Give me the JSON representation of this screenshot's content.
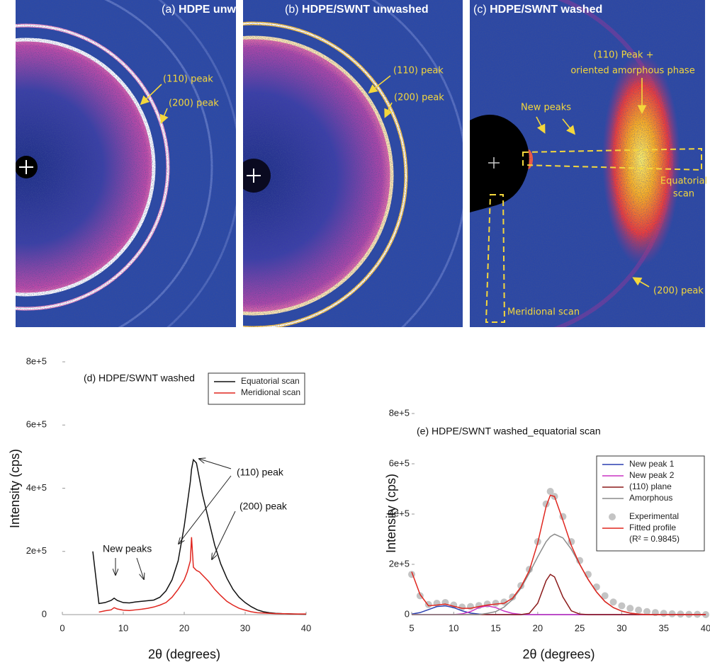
{
  "images": [
    {
      "label": "(a)",
      "title": "HDPE unwashed",
      "annotations": [
        "(110) peak",
        "(200) peak"
      ]
    },
    {
      "label": "(b)",
      "title": "HDPE/SWNT unwashed",
      "annotations": [
        "(110) peak",
        "(200) peak"
      ]
    },
    {
      "label": "(c)",
      "title": "HDPE/SWNT washed",
      "annotations": [
        "(110) Peak +",
        "oriented amorphous phase",
        "New peaks",
        "Equatorial",
        "scan",
        "(200) peak",
        "Meridional scan"
      ]
    }
  ],
  "chart_data": [
    {
      "type": "line",
      "title": "(d) HDPE/SWNT washed",
      "annotations": [
        "New peaks",
        "(110) peak",
        "(200) peak"
      ],
      "x_label": "2θ (degrees)",
      "y_label": "Intensity (cps)",
      "x": [
        5,
        6,
        7,
        8,
        8.5,
        9,
        10,
        11,
        12,
        13,
        14,
        15,
        16,
        17,
        18,
        19,
        20,
        20.5,
        21,
        21.2,
        21.5,
        22,
        22.5,
        23,
        24,
        25,
        26,
        27,
        28,
        29,
        30,
        31,
        32,
        33,
        34,
        35,
        36,
        38,
        40
      ],
      "series": [
        {
          "name": "Equatorial scan",
          "color": "#111111",
          "mode": "line",
          "values": [
            200000,
            35000,
            38000,
            45000,
            52000,
            45000,
            38000,
            37000,
            40000,
            42000,
            44000,
            46000,
            55000,
            75000,
            110000,
            170000,
            280000,
            350000,
            420000,
            460000,
            490000,
            480000,
            430000,
            380000,
            300000,
            220000,
            160000,
            115000,
            80000,
            55000,
            38000,
            25000,
            15000,
            9000,
            6000,
            4000,
            3000,
            2000,
            1000
          ]
        },
        {
          "name": "Meridional scan",
          "color": "#e0261f",
          "mode": "line",
          "values": [
            null,
            8000,
            12000,
            15000,
            22000,
            18000,
            14000,
            13000,
            15000,
            17000,
            20000,
            24000,
            30000,
            38000,
            55000,
            80000,
            110000,
            135000,
            170000,
            245000,
            150000,
            140000,
            135000,
            125000,
            105000,
            80000,
            60000,
            42000,
            30000,
            20000,
            14000,
            9000,
            6000,
            5000,
            4000,
            3000,
            3000,
            2000,
            2000
          ]
        }
      ],
      "xlim": [
        0,
        40
      ],
      "xticks": [
        0,
        10,
        20,
        30,
        40
      ],
      "ylim": [
        0,
        800000
      ],
      "yticks": [
        0,
        {
          "value": 200000,
          "label": "2e+5"
        },
        {
          "value": 400000,
          "label": "4e+5"
        },
        {
          "value": 600000,
          "label": "6e+5"
        },
        {
          "value": 800000,
          "label": "8e+5"
        }
      ],
      "legend": "upper right"
    },
    {
      "type": "line",
      "title": "(e) HDPE/SWNT washed_equatorial scan",
      "x_label": "2θ (degrees)",
      "y_label": "Intensity (cps)",
      "legend_note": "(R² = 0.9845)",
      "x": [
        5,
        6,
        7,
        8,
        9,
        10,
        11,
        12,
        13,
        14,
        15,
        16,
        17,
        18,
        19,
        20,
        21,
        21.5,
        22,
        23,
        24,
        25,
        26,
        27,
        28,
        29,
        30,
        31,
        32,
        33,
        34,
        35,
        36,
        37,
        38,
        39,
        40
      ],
      "series": [
        {
          "name": "New peak 1",
          "color": "#2b3fb0",
          "mode": "line",
          "values": [
            2000,
            8000,
            20000,
            32000,
            35000,
            28000,
            15000,
            6000,
            2000,
            0,
            0,
            0,
            0,
            0,
            0,
            0,
            0,
            0,
            0,
            0,
            0,
            0,
            0,
            0,
            0,
            0,
            0,
            0,
            0,
            0,
            0,
            0,
            0,
            0,
            0,
            0,
            0
          ]
        },
        {
          "name": "New peak 2",
          "color": "#c932c4",
          "mode": "line",
          "values": [
            0,
            0,
            0,
            0,
            0,
            0,
            3000,
            12000,
            28000,
            35000,
            28000,
            14000,
            5000,
            1000,
            0,
            0,
            0,
            0,
            0,
            0,
            0,
            0,
            0,
            0,
            0,
            0,
            0,
            0,
            0,
            0,
            0,
            0,
            0,
            0,
            0,
            0,
            0
          ]
        },
        {
          "name": "(110) plane",
          "color": "#8b1a1a",
          "mode": "line",
          "values": [
            0,
            0,
            0,
            0,
            0,
            0,
            0,
            0,
            0,
            0,
            0,
            0,
            0,
            0,
            5000,
            45000,
            135000,
            160000,
            150000,
            70000,
            15000,
            2000,
            0,
            0,
            0,
            0,
            0,
            0,
            0,
            0,
            0,
            0,
            0,
            0,
            0,
            0,
            0
          ]
        },
        {
          "name": "Amorphous",
          "color": "#8c8c8c",
          "mode": "line",
          "values": [
            0,
            0,
            0,
            0,
            0,
            0,
            0,
            0,
            0,
            5000,
            12000,
            30000,
            60000,
            105000,
            165000,
            230000,
            290000,
            310000,
            320000,
            305000,
            260000,
            200000,
            140000,
            90000,
            52000,
            28000,
            14000,
            6000,
            2000,
            0,
            0,
            0,
            0,
            0,
            0,
            0,
            0
          ]
        },
        {
          "name": "Experimental",
          "color": "#c4c4c4",
          "mode": "markers",
          "values": [
            160000,
            75000,
            40000,
            45000,
            48000,
            38000,
            30000,
            32000,
            36000,
            42000,
            45000,
            50000,
            70000,
            115000,
            180000,
            290000,
            440000,
            490000,
            470000,
            390000,
            290000,
            215000,
            160000,
            110000,
            75000,
            50000,
            35000,
            25000,
            18000,
            12000,
            8000,
            5000,
            3000,
            2000,
            1000,
            1000,
            0
          ]
        },
        {
          "name": "Fitted profile",
          "color": "#e0261f",
          "mode": "line",
          "values": [
            170000,
            80000,
            35000,
            38000,
            42000,
            33000,
            25000,
            25000,
            32000,
            38000,
            42000,
            45000,
            65000,
            110000,
            175000,
            285000,
            430000,
            475000,
            470000,
            375000,
            275000,
            200000,
            140000,
            90000,
            52000,
            28000,
            14000,
            6000,
            2000,
            0,
            0,
            0,
            0,
            0,
            0,
            0,
            0
          ]
        }
      ],
      "xlim": [
        5,
        40
      ],
      "xticks": [
        5,
        10,
        15,
        20,
        25,
        30,
        35,
        40
      ],
      "ylim": [
        0,
        800000
      ],
      "yticks": [
        0,
        {
          "value": 200000,
          "label": "2e+5"
        },
        {
          "value": 400000,
          "label": "4e+5"
        },
        {
          "value": 600000,
          "label": "6e+5"
        },
        {
          "value": 800000,
          "label": "8e+5"
        }
      ],
      "legend": "upper right"
    }
  ]
}
